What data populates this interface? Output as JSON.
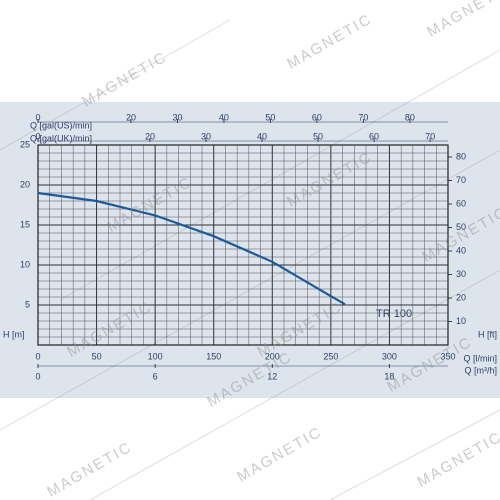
{
  "watermark": "MAGNETIC",
  "chart_data": {
    "type": "line",
    "y_label": "H [m]",
    "y2_label": "H [ft]",
    "x_label": "Q [l/min]",
    "x2_label": "Q [m³/h]",
    "xlim": [
      0,
      350
    ],
    "xticks": [
      0,
      50,
      100,
      150,
      200,
      250,
      300,
      350
    ],
    "x2lim": [
      0,
      21
    ],
    "x2ticks": [
      0,
      6,
      12,
      18
    ],
    "top_axes": [
      {
        "label": "Q [gal(US)/min]",
        "lim": [
          0,
          88.2
        ],
        "ticks": [
          0,
          20,
          30,
          40,
          50,
          60,
          70,
          80
        ]
      },
      {
        "label": "Q [gal(UK)/min]",
        "lim": [
          0,
          73.2
        ],
        "ticks": [
          0,
          20,
          30,
          40,
          50,
          60,
          70
        ]
      }
    ],
    "ylim": [
      0,
      25
    ],
    "yticks": [
      5,
      10,
      15,
      20,
      25
    ],
    "y2lim": [
      0,
      85.1
    ],
    "y2ticks": [
      10,
      20,
      30,
      40,
      50,
      60,
      70,
      80
    ],
    "grid": true,
    "series": [
      {
        "name": "TR 100",
        "color": "#1b5a9c",
        "x": [
          0,
          50,
          100,
          150,
          200,
          250,
          262
        ],
        "values": [
          19,
          18,
          16.2,
          13.6,
          10.4,
          6.1,
          5.1
        ]
      }
    ]
  }
}
